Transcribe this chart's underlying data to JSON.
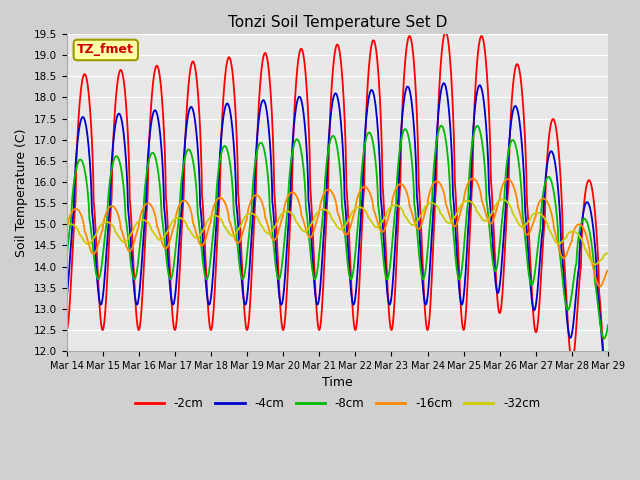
{
  "title": "Tonzi Soil Temperature Set D",
  "xlabel": "Time",
  "ylabel": "Soil Temperature (C)",
  "ylim": [
    12.0,
    19.5
  ],
  "yticks": [
    12.0,
    12.5,
    13.0,
    13.5,
    14.0,
    14.5,
    15.0,
    15.5,
    16.0,
    16.5,
    17.0,
    17.5,
    18.0,
    18.5,
    19.0,
    19.5
  ],
  "x_labels": [
    "Mar 14",
    "Mar 15",
    "Mar 16",
    "Mar 17",
    "Mar 18",
    "Mar 19",
    "Mar 20",
    "Mar 21",
    "Mar 22",
    "Mar 23",
    "Mar 24",
    "Mar 25",
    "Mar 26",
    "Mar 27",
    "Mar 28",
    "Mar 29"
  ],
  "series_labels": [
    "-2cm",
    "-4cm",
    "-8cm",
    "-16cm",
    "-32cm"
  ],
  "series_colors": [
    "#ff0000",
    "#0000cc",
    "#00bb00",
    "#ff8800",
    "#cccc00"
  ],
  "annotation_text": "TZ_fmet",
  "annotation_color": "#cc0000",
  "annotation_bg": "#ffffaa",
  "annotation_border": "#999900",
  "line_width": 1.3
}
